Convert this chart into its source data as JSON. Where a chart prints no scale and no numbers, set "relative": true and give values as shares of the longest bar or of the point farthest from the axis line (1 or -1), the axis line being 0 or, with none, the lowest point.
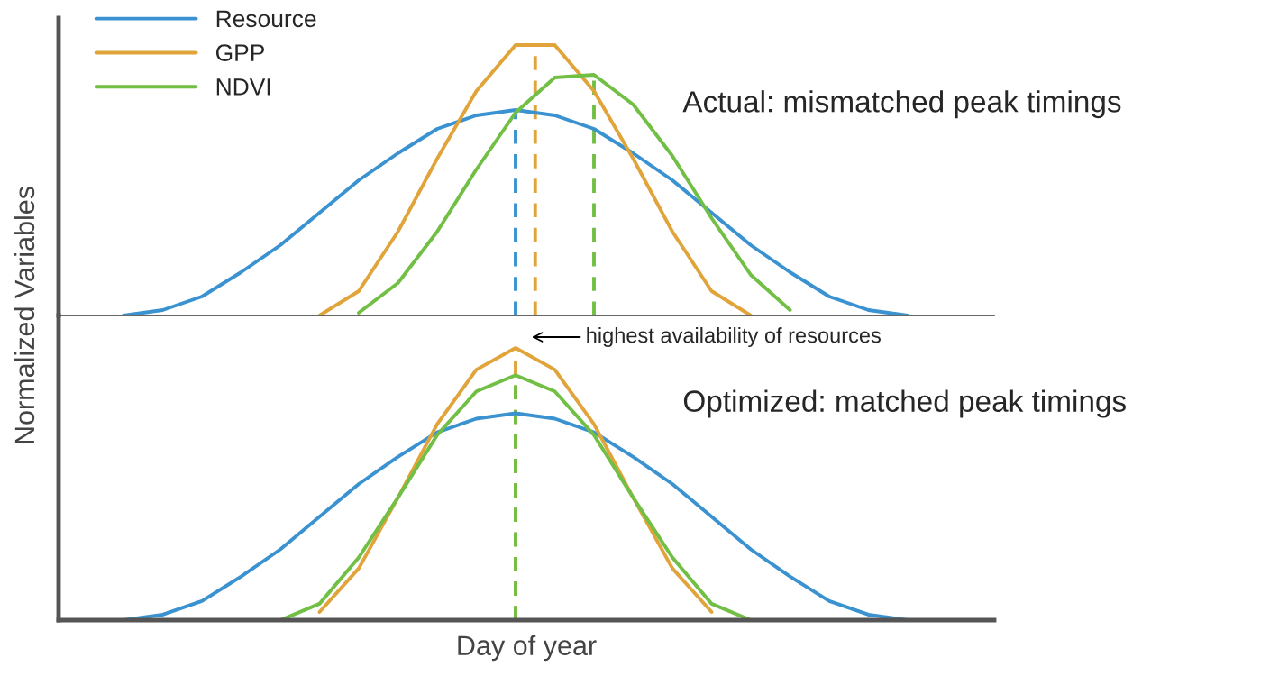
{
  "chart_data": [
    {
      "type": "line",
      "relative": true,
      "tick_labels": false,
      "legend": "top left",
      "line_style": "solid",
      "categories": [
        null,
        null,
        null,
        null,
        null,
        null,
        null,
        null,
        null,
        null,
        null,
        null,
        null,
        null,
        null,
        null,
        null,
        null,
        null,
        null,
        null
      ],
      "series": [
        {
          "name": "Resource",
          "color": "#3a93d0",
          "values": [
            0,
            0.02,
            0.07,
            0.16,
            0.26,
            0.38,
            0.5,
            0.6,
            0.69,
            0.74,
            0.76,
            0.74,
            0.69,
            0.6,
            0.5,
            0.38,
            0.26,
            0.16,
            0.07,
            0.02,
            0
          ]
        },
        {
          "name": "GPP",
          "color": "#e0a43a",
          "values": [
            null,
            null,
            null,
            null,
            null,
            0,
            0.09,
            0.31,
            0.58,
            0.83,
            1,
            1,
            0.83,
            0.58,
            0.31,
            0.09,
            0,
            null,
            null,
            null,
            null
          ]
        },
        {
          "name": "NDVI",
          "color": "#71bf44",
          "values": [
            null,
            null,
            null,
            null,
            null,
            null,
            0.01,
            0.12,
            0.31,
            0.54,
            0.75,
            0.88,
            0.89,
            0.78,
            0.59,
            0.36,
            0.15,
            0.02,
            null,
            null,
            null
          ]
        }
      ],
      "annotations": [
        "Actual: mismatched peak timings",
        "highest availability of resources"
      ]
    },
    {
      "type": "line",
      "relative": true,
      "tick_labels": false,
      "line_style": "solid",
      "xlabel": "Day of year",
      "ylabel": "Normalized Variables",
      "categories": [
        null,
        null,
        null,
        null,
        null,
        null,
        null,
        null,
        null,
        null,
        null,
        null,
        null,
        null,
        null,
        null,
        null,
        null,
        null,
        null,
        null
      ],
      "series": [
        {
          "color": "#3a93d0",
          "values": [
            0,
            0.02,
            0.07,
            0.16,
            0.26,
            0.38,
            0.5,
            0.6,
            0.69,
            0.74,
            0.76,
            0.74,
            0.69,
            0.6,
            0.5,
            0.38,
            0.26,
            0.16,
            0.07,
            0.02,
            0
          ]
        },
        {
          "color": "#e0a43a",
          "values": [
            null,
            null,
            null,
            null,
            null,
            0.03,
            0.19,
            0.45,
            0.72,
            0.92,
            1,
            0.92,
            0.72,
            0.45,
            0.19,
            0.03,
            null,
            null,
            null,
            null,
            null
          ]
        },
        {
          "color": "#71bf44",
          "values": [
            null,
            null,
            null,
            null,
            0,
            0.06,
            0.23,
            0.45,
            0.68,
            0.84,
            0.9,
            0.84,
            0.68,
            0.45,
            0.23,
            0.06,
            0,
            null,
            null,
            null,
            null
          ]
        }
      ],
      "annotations": [
        "Optimized: matched peak timings"
      ]
    }
  ]
}
